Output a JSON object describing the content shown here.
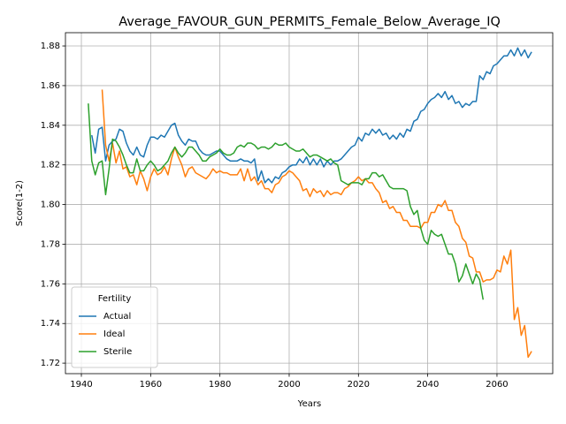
{
  "chart_data": {
    "type": "line",
    "title": "Average_FAVOUR_GUN_PERMITS_Female_Below_Average_IQ",
    "x_label": "Years",
    "y_label": "Score(1-2)",
    "legend_title": "Fertility",
    "legend_loc": "lower left",
    "grid": true,
    "xlim": [
      1935.4,
      2076.1
    ],
    "xticks": [
      1940,
      1960,
      1980,
      2000,
      2020,
      2040,
      2060
    ],
    "ylim": [
      1.7147,
      1.8867
    ],
    "yticks": [
      1.72,
      1.74,
      1.76,
      1.78,
      1.8,
      1.82,
      1.84,
      1.86,
      1.88
    ],
    "x": [
      1942,
      1943,
      1944,
      1945,
      1946,
      1947,
      1948,
      1949,
      1950,
      1951,
      1952,
      1953,
      1954,
      1955,
      1956,
      1957,
      1958,
      1959,
      1960,
      1961,
      1962,
      1963,
      1964,
      1965,
      1966,
      1967,
      1968,
      1969,
      1970,
      1971,
      1972,
      1973,
      1974,
      1975,
      1976,
      1977,
      1978,
      1979,
      1980,
      1981,
      1982,
      1983,
      1984,
      1985,
      1986,
      1987,
      1988,
      1989,
      1990,
      1991,
      1992,
      1993,
      1994,
      1995,
      1996,
      1997,
      1998,
      1999,
      2000,
      2001,
      2002,
      2003,
      2004,
      2005,
      2006,
      2007,
      2008,
      2009,
      2010,
      2011,
      2012,
      2013,
      2014,
      2015,
      2016,
      2017,
      2018,
      2019,
      2020,
      2021,
      2022,
      2023,
      2024,
      2025,
      2026,
      2027,
      2028,
      2029,
      2030,
      2031,
      2032,
      2033,
      2034,
      2035,
      2036,
      2037,
      2038,
      2039,
      2040,
      2041,
      2042,
      2043,
      2044,
      2045,
      2046,
      2047,
      2048,
      2049,
      2050,
      2051,
      2052,
      2053,
      2054,
      2055,
      2056,
      2057,
      2058,
      2059,
      2060,
      2061,
      2062,
      2063,
      2064,
      2065,
      2066,
      2067,
      2068,
      2069,
      2070
    ],
    "series": [
      {
        "name": "Actual",
        "color": "#1f77b4",
        "values": [
          null,
          1.835,
          1.826,
          1.838,
          1.839,
          1.822,
          1.83,
          1.832,
          1.833,
          1.838,
          1.837,
          1.831,
          1.827,
          1.825,
          1.829,
          1.825,
          1.824,
          1.83,
          1.834,
          1.834,
          1.833,
          1.835,
          1.834,
          1.837,
          1.84,
          1.841,
          1.835,
          1.832,
          1.83,
          1.833,
          1.832,
          1.832,
          1.828,
          1.826,
          1.825,
          1.825,
          1.826,
          1.827,
          1.827,
          1.825,
          1.823,
          1.822,
          1.822,
          1.822,
          1.823,
          1.822,
          1.822,
          1.821,
          1.823,
          1.812,
          1.817,
          1.811,
          1.813,
          1.811,
          1.814,
          1.813,
          1.816,
          1.817,
          1.819,
          1.82,
          1.82,
          1.823,
          1.821,
          1.824,
          1.82,
          1.823,
          1.82,
          1.823,
          1.819,
          1.822,
          1.82,
          1.822,
          1.822,
          1.823,
          1.825,
          1.827,
          1.829,
          1.83,
          1.834,
          1.832,
          1.836,
          1.835,
          1.838,
          1.836,
          1.838,
          1.835,
          1.836,
          1.833,
          1.835,
          1.833,
          1.836,
          1.834,
          1.838,
          1.837,
          1.842,
          1.843,
          1.847,
          1.848,
          1.851,
          1.853,
          1.854,
          1.856,
          1.854,
          1.857,
          1.853,
          1.855,
          1.851,
          1.852,
          1.849,
          1.851,
          1.85,
          1.852,
          1.852,
          1.865,
          1.863,
          1.867,
          1.866,
          1.87,
          1.871,
          1.873,
          1.875,
          1.875,
          1.878,
          1.875,
          1.879,
          1.875,
          1.878,
          1.874,
          1.877
        ]
      },
      {
        "name": "Ideal",
        "color": "#ff7f0e",
        "values": [
          null,
          null,
          null,
          null,
          1.858,
          1.83,
          1.822,
          1.831,
          1.821,
          1.827,
          1.818,
          1.819,
          1.814,
          1.815,
          1.81,
          1.817,
          1.813,
          1.807,
          1.814,
          1.818,
          1.815,
          1.816,
          1.819,
          1.815,
          1.823,
          1.829,
          1.824,
          1.82,
          1.814,
          1.818,
          1.819,
          1.816,
          1.815,
          1.814,
          1.813,
          1.815,
          1.818,
          1.816,
          1.817,
          1.816,
          1.816,
          1.815,
          1.815,
          1.815,
          1.818,
          1.812,
          1.818,
          1.812,
          1.814,
          1.81,
          1.812,
          1.808,
          1.808,
          1.806,
          1.81,
          1.811,
          1.814,
          1.815,
          1.817,
          1.816,
          1.814,
          1.812,
          1.807,
          1.808,
          1.804,
          1.808,
          1.806,
          1.807,
          1.804,
          1.807,
          1.805,
          1.806,
          1.806,
          1.805,
          1.808,
          1.809,
          1.811,
          1.812,
          1.814,
          1.812,
          1.813,
          1.811,
          1.811,
          1.808,
          1.806,
          1.801,
          1.802,
          1.798,
          1.799,
          1.796,
          1.796,
          1.792,
          1.792,
          1.789,
          1.789,
          1.789,
          1.788,
          1.791,
          1.791,
          1.796,
          1.796,
          1.8,
          1.799,
          1.802,
          1.797,
          1.797,
          1.791,
          1.789,
          1.783,
          1.781,
          1.774,
          1.773,
          1.766,
          1.766,
          1.761,
          1.762,
          1.762,
          1.763,
          1.767,
          1.766,
          1.774,
          1.77,
          1.777,
          1.742,
          1.748,
          1.734,
          1.739,
          1.723,
          1.726
        ]
      },
      {
        "name": "Sterile",
        "color": "#2ca02c",
        "values": [
          1.851,
          1.822,
          1.815,
          1.821,
          1.822,
          1.805,
          1.818,
          1.833,
          1.832,
          1.829,
          1.825,
          1.82,
          1.816,
          1.816,
          1.823,
          1.817,
          1.817,
          1.82,
          1.822,
          1.82,
          1.817,
          1.818,
          1.82,
          1.822,
          1.826,
          1.829,
          1.826,
          1.824,
          1.826,
          1.829,
          1.829,
          1.827,
          1.825,
          1.822,
          1.822,
          1.824,
          1.825,
          1.826,
          1.828,
          1.826,
          1.825,
          1.825,
          1.826,
          1.829,
          1.83,
          1.829,
          1.831,
          1.831,
          1.83,
          1.828,
          1.829,
          1.829,
          1.828,
          1.829,
          1.831,
          1.83,
          1.83,
          1.831,
          1.829,
          1.828,
          1.827,
          1.827,
          1.828,
          1.826,
          1.824,
          1.825,
          1.825,
          1.824,
          1.823,
          1.822,
          1.823,
          1.821,
          1.82,
          1.812,
          1.811,
          1.81,
          1.811,
          1.811,
          1.811,
          1.81,
          1.813,
          1.813,
          1.816,
          1.816,
          1.814,
          1.815,
          1.812,
          1.809,
          1.808,
          1.808,
          1.808,
          1.808,
          1.807,
          1.799,
          1.795,
          1.797,
          1.788,
          1.782,
          1.78,
          1.787,
          1.785,
          1.784,
          1.785,
          1.78,
          1.775,
          1.775,
          1.77,
          1.761,
          1.764,
          1.77,
          1.765,
          1.76,
          1.765,
          1.762,
          1.752,
          null,
          null,
          null,
          null,
          null,
          null,
          null,
          null,
          null,
          null,
          null,
          null,
          null,
          null
        ]
      }
    ]
  }
}
